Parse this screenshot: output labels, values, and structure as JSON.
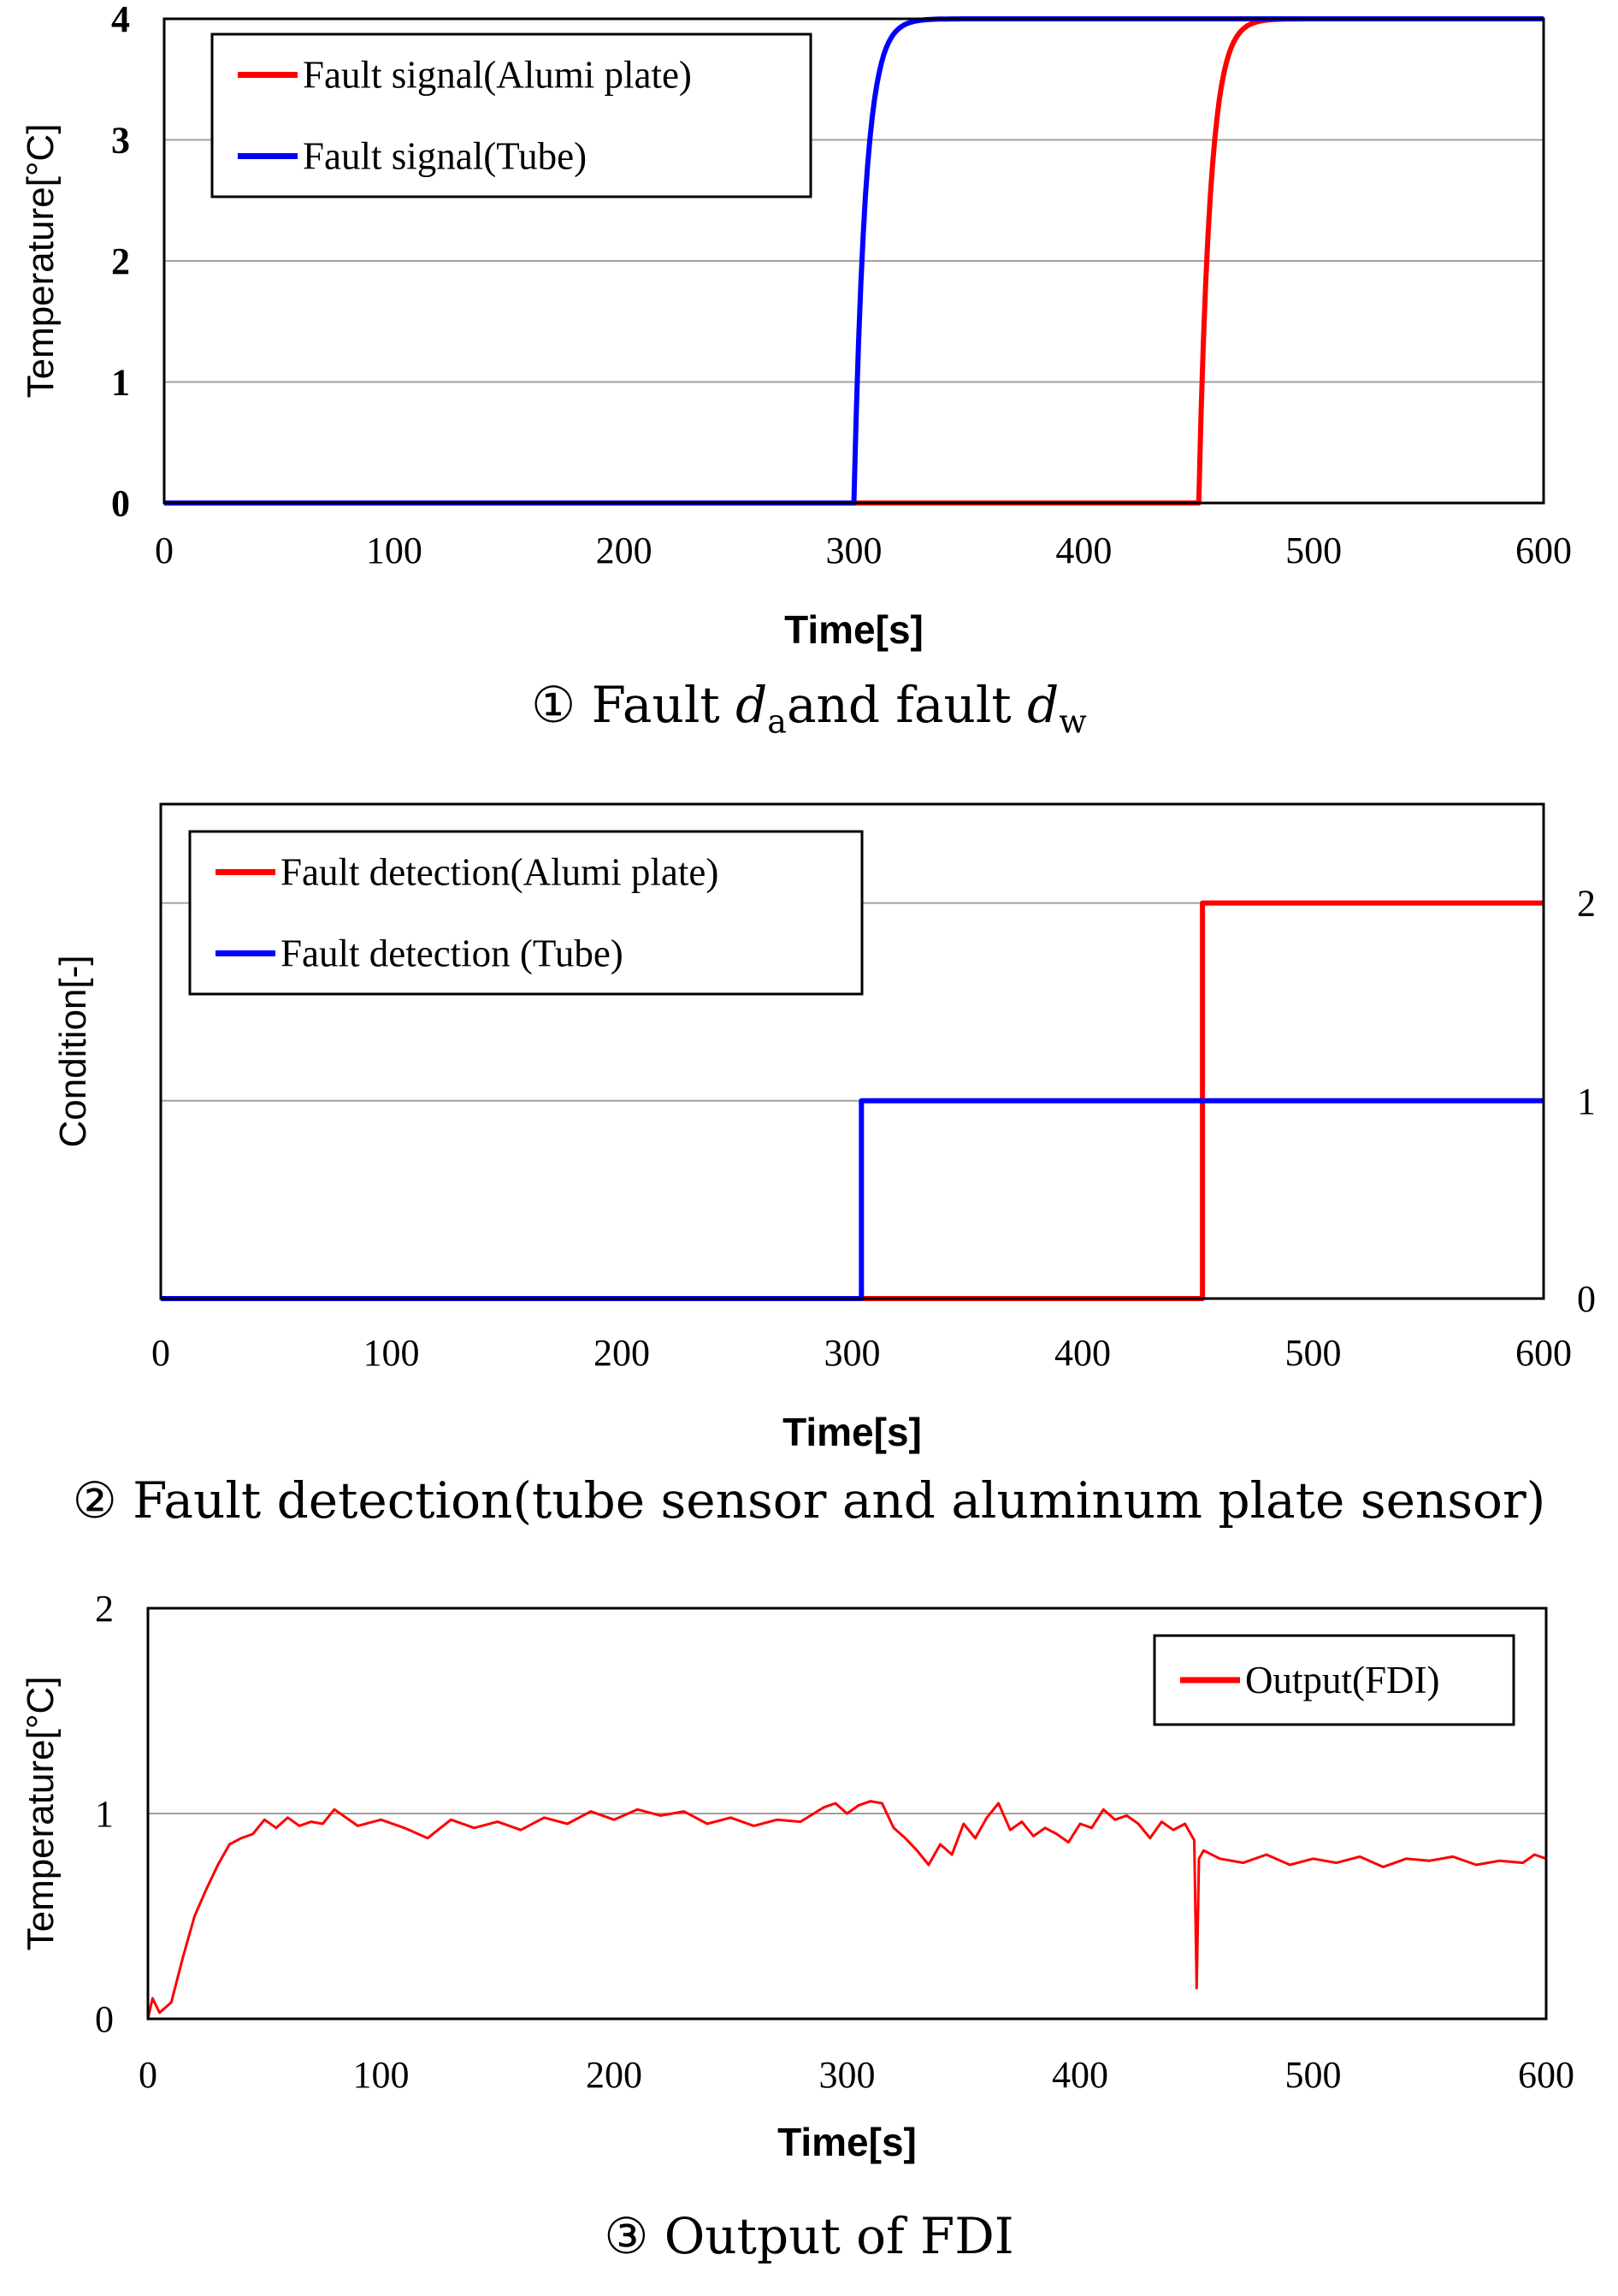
{
  "chart_data": [
    {
      "id": "panel-1",
      "type": "line",
      "xlabel": "Time[s]",
      "ylabel": "Temperature[°C]",
      "xlim": [
        0,
        600
      ],
      "ylim": [
        0,
        4
      ],
      "xticks": [
        "0",
        "100",
        "200",
        "300",
        "400",
        "500",
        "600"
      ],
      "yticks": [
        "0",
        "1",
        "2",
        "3",
        "4"
      ],
      "grid": "horizontal",
      "legend": "top-left",
      "series": [
        {
          "name": "Fault signal(Alumi plate)",
          "color": "#ff0000",
          "onset": 450,
          "level": 4,
          "tau": 5
        },
        {
          "name": "Fault signal(Tube)",
          "color": "#0000ff",
          "onset": 300,
          "level": 4,
          "tau": 5
        }
      ]
    },
    {
      "id": "panel-2",
      "type": "line",
      "xlabel": "Time[s]",
      "ylabel": "Condition[-]",
      "xlim": [
        0,
        600
      ],
      "ylim": [
        0,
        2.5
      ],
      "xticks": [
        "0",
        "100",
        "200",
        "300",
        "400",
        "500",
        "600"
      ],
      "yticks": [
        "0",
        "1",
        "2"
      ],
      "y_axis_side": "right",
      "grid": "horizontal",
      "legend": "top-left",
      "series": [
        {
          "name": "Fault detection(Alumi plate)",
          "color": "#ff0000",
          "step_at": 452,
          "level": 2
        },
        {
          "name": "Fault detection (Tube)",
          "color": "#0000ff",
          "step_at": 304,
          "level": 1
        }
      ]
    },
    {
      "id": "panel-3",
      "type": "line",
      "xlabel": "Time[s]",
      "ylabel": "Temperature[°C]",
      "xlim": [
        0,
        600
      ],
      "ylim": [
        0,
        2
      ],
      "xticks": [
        "0",
        "100",
        "200",
        "300",
        "400",
        "500",
        "600"
      ],
      "yticks": [
        "0",
        "1",
        "2"
      ],
      "grid": "horizontal",
      "legend": "top-right",
      "series": [
        {
          "name": "Output(FDI)",
          "color": "#ff0000",
          "x": [
            0,
            2,
            5,
            10,
            15,
            20,
            25,
            30,
            35,
            40,
            45,
            50,
            55,
            60,
            65,
            70,
            75,
            80,
            90,
            100,
            110,
            120,
            130,
            140,
            150,
            160,
            170,
            180,
            190,
            200,
            210,
            220,
            230,
            240,
            250,
            260,
            270,
            280,
            290,
            295,
            300,
            305,
            310,
            315,
            320,
            325,
            330,
            335,
            340,
            345,
            350,
            355,
            360,
            365,
            370,
            375,
            380,
            385,
            390,
            395,
            400,
            405,
            410,
            415,
            420,
            425,
            430,
            435,
            440,
            445,
            449,
            450,
            451,
            452,
            453,
            460,
            470,
            480,
            490,
            500,
            510,
            520,
            530,
            540,
            550,
            560,
            570,
            580,
            590,
            595,
            600
          ],
          "y": [
            0.0,
            0.1,
            0.03,
            0.08,
            0.3,
            0.5,
            0.63,
            0.75,
            0.85,
            0.88,
            0.9,
            0.97,
            0.93,
            0.98,
            0.94,
            0.96,
            0.95,
            1.02,
            0.94,
            0.97,
            0.93,
            0.88,
            0.97,
            0.93,
            0.96,
            0.92,
            0.98,
            0.95,
            1.01,
            0.97,
            1.02,
            0.99,
            1.01,
            0.95,
            0.98,
            0.94,
            0.97,
            0.96,
            1.03,
            1.05,
            1.0,
            1.04,
            1.06,
            1.05,
            0.93,
            0.88,
            0.82,
            0.75,
            0.85,
            0.8,
            0.95,
            0.88,
            0.98,
            1.05,
            0.92,
            0.96,
            0.89,
            0.93,
            0.9,
            0.86,
            0.95,
            0.93,
            1.02,
            0.97,
            0.99,
            0.95,
            0.88,
            0.96,
            0.92,
            0.95,
            0.87,
            0.15,
            0.78,
            0.8,
            0.82,
            0.78,
            0.76,
            0.8,
            0.75,
            0.78,
            0.76,
            0.79,
            0.74,
            0.78,
            0.77,
            0.79,
            0.75,
            0.77,
            0.76,
            0.8,
            0.78
          ]
        }
      ]
    }
  ],
  "captions": {
    "c1_prefix": "① Fault ",
    "c1_var1": "d",
    "c1_sub1": "a",
    "c1_mid": "and fault ",
    "c1_var2": "d",
    "c1_sub2": "w",
    "c2": "② Fault detection(tube sensor and aluminum plate sensor)",
    "c3": "③ Output of FDI"
  }
}
